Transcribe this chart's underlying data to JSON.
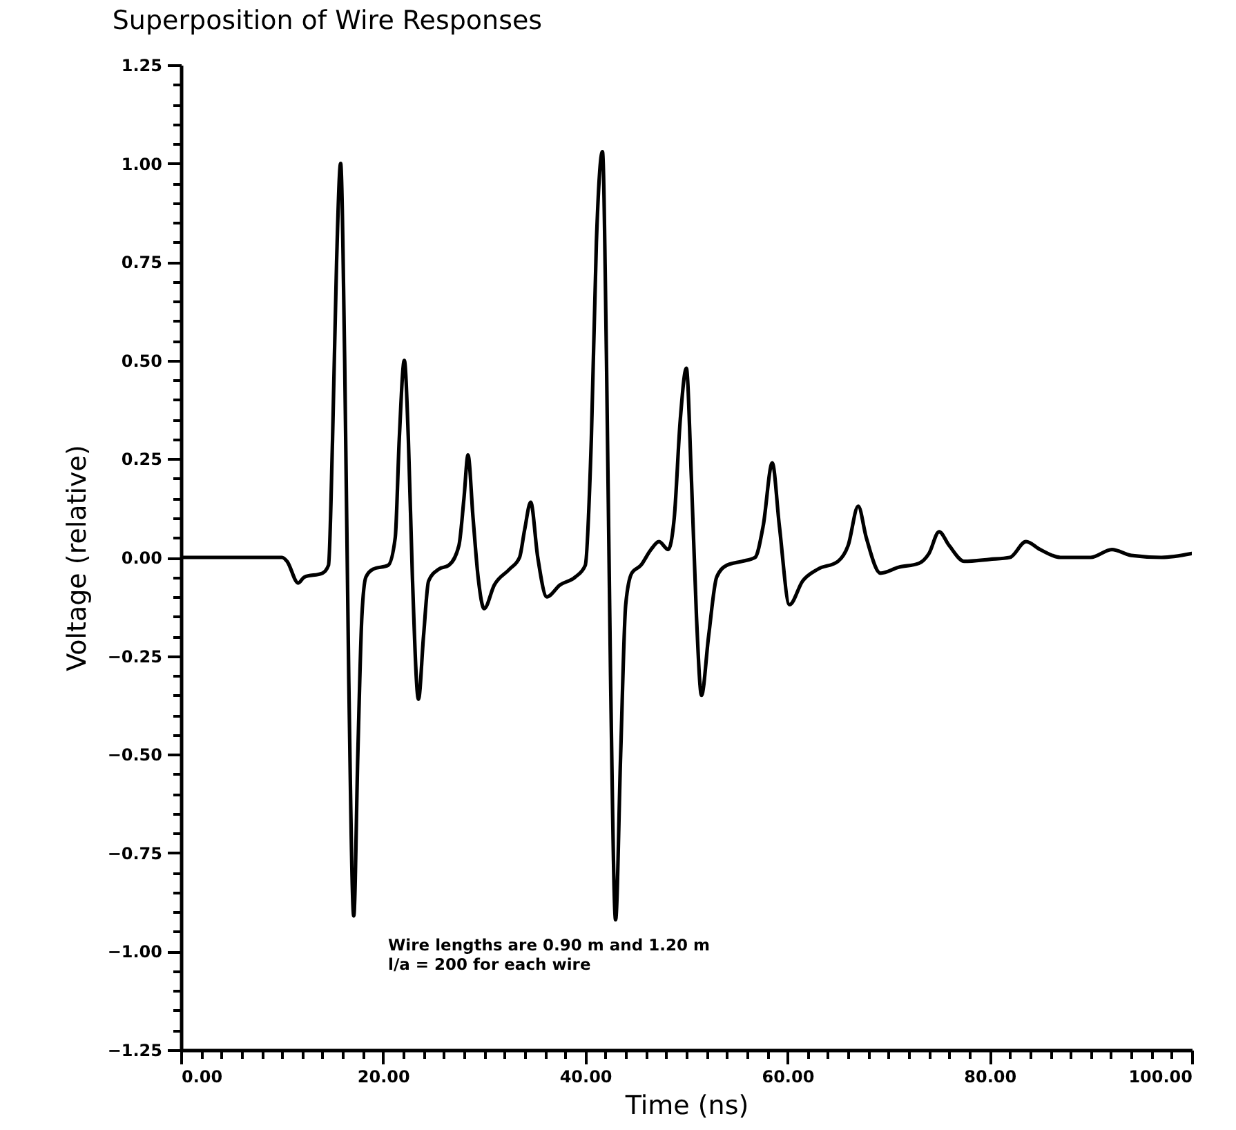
{
  "chart_data": {
    "type": "line",
    "title": "Superposition of Wire Responses",
    "xlabel": "Time  (ns)",
    "ylabel": "Voltage  (relative)",
    "annotations": [
      "Wire lengths are 0.90 m and 1.20 m",
      "l/a = 200 for each wire"
    ],
    "x": [
      0,
      10,
      10.5,
      11.6,
      12.2,
      14,
      14.6,
      15,
      15.4,
      15.8,
      16.2,
      16.6,
      17.1,
      17.5,
      17.9,
      18.3,
      19,
      20.5,
      21.2,
      21.6,
      22.1,
      22.5,
      22.9,
      23.5,
      24,
      24.5,
      25.5,
      26.5,
      27.5,
      28,
      28.4,
      28.9,
      29.4,
      30,
      31,
      32.5,
      33.5,
      34,
      34.6,
      35.3,
      36.2,
      37.5,
      39,
      40,
      40.6,
      41.1,
      41.7,
      42.1,
      42.5,
      43,
      43.5,
      44,
      44.6,
      45.5,
      46.5,
      47.3,
      48.2,
      48.8,
      49.4,
      50,
      50.5,
      51,
      51.5,
      52.2,
      53,
      54,
      55.5,
      56.8,
      57.6,
      58.5,
      59.2,
      60.2,
      61.5,
      63,
      65,
      66,
      67,
      67.8,
      69.2,
      71,
      73,
      74,
      75,
      76,
      77.5,
      80,
      82,
      83.6,
      85,
      87,
      90,
      92.1,
      94,
      97,
      100
    ],
    "series": [
      {
        "color": "#000000",
        "values": [
          0,
          0,
          -0.01,
          -0.065,
          -0.05,
          -0.04,
          -0.02,
          0.3,
          0.75,
          1.0,
          0.5,
          -0.3,
          -0.91,
          -0.5,
          -0.15,
          -0.05,
          -0.03,
          -0.02,
          0.05,
          0.3,
          0.5,
          0.3,
          -0.05,
          -0.36,
          -0.2,
          -0.06,
          -0.03,
          -0.02,
          0.03,
          0.15,
          0.26,
          0.1,
          -0.05,
          -0.13,
          -0.07,
          -0.03,
          0.0,
          0.07,
          0.14,
          0.0,
          -0.1,
          -0.07,
          -0.05,
          -0.02,
          0.3,
          0.8,
          1.03,
          0.5,
          -0.3,
          -0.92,
          -0.5,
          -0.12,
          -0.04,
          -0.02,
          0.02,
          0.04,
          0.02,
          0.1,
          0.35,
          0.48,
          0.2,
          -0.15,
          -0.35,
          -0.2,
          -0.05,
          -0.02,
          -0.01,
          0.0,
          0.08,
          0.24,
          0.08,
          -0.12,
          -0.06,
          -0.03,
          -0.01,
          0.03,
          0.13,
          0.05,
          -0.04,
          -0.025,
          -0.015,
          0.01,
          0.065,
          0.03,
          -0.01,
          -0.005,
          0.0,
          0.04,
          0.02,
          0.0,
          0.0,
          0.02,
          0.005,
          0.0,
          0.01
        ]
      }
    ],
    "xlim": [
      0,
      100
    ],
    "ylim": [
      -1.25,
      1.25
    ],
    "xticks": [
      {
        "value": 0,
        "label": "0.00"
      },
      {
        "value": 2,
        "label": null
      },
      {
        "value": 4,
        "label": null
      },
      {
        "value": 6,
        "label": null
      },
      {
        "value": 8,
        "label": null
      },
      {
        "value": 10,
        "label": null
      },
      {
        "value": 12,
        "label": null
      },
      {
        "value": 14,
        "label": null
      },
      {
        "value": 16,
        "label": null
      },
      {
        "value": 18,
        "label": null
      },
      {
        "value": 20,
        "label": "20.00"
      },
      {
        "value": 22,
        "label": null
      },
      {
        "value": 24,
        "label": null
      },
      {
        "value": 26,
        "label": null
      },
      {
        "value": 28,
        "label": null
      },
      {
        "value": 30,
        "label": null
      },
      {
        "value": 32,
        "label": null
      },
      {
        "value": 34,
        "label": null
      },
      {
        "value": 36,
        "label": null
      },
      {
        "value": 38,
        "label": null
      },
      {
        "value": 40,
        "label": "40.00"
      },
      {
        "value": 42,
        "label": null
      },
      {
        "value": 44,
        "label": null
      },
      {
        "value": 46,
        "label": null
      },
      {
        "value": 48,
        "label": null
      },
      {
        "value": 50,
        "label": null
      },
      {
        "value": 52,
        "label": null
      },
      {
        "value": 54,
        "label": null
      },
      {
        "value": 56,
        "label": null
      },
      {
        "value": 58,
        "label": null
      },
      {
        "value": 60,
        "label": "60.00"
      },
      {
        "value": 62,
        "label": null
      },
      {
        "value": 64,
        "label": null
      },
      {
        "value": 66,
        "label": null
      },
      {
        "value": 68,
        "label": null
      },
      {
        "value": 70,
        "label": null
      },
      {
        "value": 72,
        "label": null
      },
      {
        "value": 74,
        "label": null
      },
      {
        "value": 76,
        "label": null
      },
      {
        "value": 78,
        "label": null
      },
      {
        "value": 80,
        "label": "80.00"
      },
      {
        "value": 82,
        "label": null
      },
      {
        "value": 84,
        "label": null
      },
      {
        "value": 86,
        "label": null
      },
      {
        "value": 88,
        "label": null
      },
      {
        "value": 90,
        "label": null
      },
      {
        "value": 92,
        "label": null
      },
      {
        "value": 94,
        "label": null
      },
      {
        "value": 96,
        "label": null
      },
      {
        "value": 98,
        "label": null
      },
      {
        "value": 100,
        "label": "100.00"
      }
    ],
    "yticks": [
      {
        "value": -1.25,
        "label": "−1.25"
      },
      {
        "value": -1.2,
        "label": null
      },
      {
        "value": -1.15,
        "label": null
      },
      {
        "value": -1.1,
        "label": null
      },
      {
        "value": -1.05,
        "label": null
      },
      {
        "value": -1,
        "label": "−1.00"
      },
      {
        "value": -0.95,
        "label": null
      },
      {
        "value": -0.9,
        "label": null
      },
      {
        "value": -0.85,
        "label": null
      },
      {
        "value": -0.8,
        "label": null
      },
      {
        "value": -0.75,
        "label": "−0.75"
      },
      {
        "value": -0.7,
        "label": null
      },
      {
        "value": -0.65,
        "label": null
      },
      {
        "value": -0.6,
        "label": null
      },
      {
        "value": -0.55,
        "label": null
      },
      {
        "value": -0.5,
        "label": "−0.50"
      },
      {
        "value": -0.45,
        "label": null
      },
      {
        "value": -0.4,
        "label": null
      },
      {
        "value": -0.35,
        "label": null
      },
      {
        "value": -0.3,
        "label": null
      },
      {
        "value": -0.25,
        "label": "−0.25"
      },
      {
        "value": -0.2,
        "label": null
      },
      {
        "value": -0.15,
        "label": null
      },
      {
        "value": -0.1,
        "label": null
      },
      {
        "value": -0.05,
        "label": null
      },
      {
        "value": 0,
        "label": "0.00"
      },
      {
        "value": 0.05,
        "label": null
      },
      {
        "value": 0.1,
        "label": null
      },
      {
        "value": 0.15,
        "label": null
      },
      {
        "value": 0.2,
        "label": null
      },
      {
        "value": 0.25,
        "label": "0.25"
      },
      {
        "value": 0.3,
        "label": null
      },
      {
        "value": 0.35,
        "label": null
      },
      {
        "value": 0.4,
        "label": null
      },
      {
        "value": 0.45,
        "label": null
      },
      {
        "value": 0.5,
        "label": "0.50"
      },
      {
        "value": 0.55,
        "label": null
      },
      {
        "value": 0.6,
        "label": null
      },
      {
        "value": 0.65,
        "label": null
      },
      {
        "value": 0.7,
        "label": null
      },
      {
        "value": 0.75,
        "label": "0.75"
      },
      {
        "value": 0.8,
        "label": null
      },
      {
        "value": 0.85,
        "label": null
      },
      {
        "value": 0.9,
        "label": null
      },
      {
        "value": 0.95,
        "label": null
      },
      {
        "value": 1,
        "label": "1.00"
      },
      {
        "value": 1.05,
        "label": null
      },
      {
        "value": 1.1,
        "label": null
      },
      {
        "value": 1.15,
        "label": null
      },
      {
        "value": 1.2,
        "label": null
      },
      {
        "value": 1.25,
        "label": "1.25"
      }
    ],
    "grid": false,
    "marker": "none",
    "line_style": "solid"
  }
}
